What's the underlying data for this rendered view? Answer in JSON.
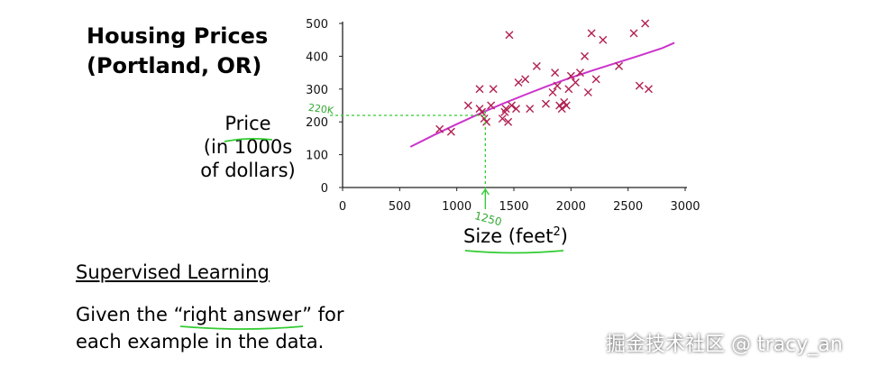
{
  "slide": {
    "title_line1": "Housing Prices",
    "title_line2": "(Portland, OR)",
    "ylabel_line1": "Price",
    "ylabel_line2": "(in 1000s",
    "ylabel_line3": "of dollars)",
    "xlabel": "Size (feet",
    "xlabel_sup": "2",
    "xlabel_end": ")",
    "section_title": "Supervised Learning",
    "desc_pre": "Given the “",
    "desc_highlight": "right answer",
    "desc_post": "” for",
    "desc_line2": "each example in the data.",
    "annotation_x": "1250",
    "annotation_y": "220K",
    "watermark": "掘金技术社区 @ tracy_an"
  },
  "colors": {
    "marker": "#b02050",
    "fit_line": "#cc33cc",
    "ink": "#33cc33"
  },
  "chart_data": {
    "type": "scatter",
    "title": "Housing Prices (Portland, OR)",
    "xlabel": "Size (feet2)",
    "ylabel": "Price (in 1000s of dollars)",
    "xlim": [
      0,
      3000
    ],
    "ylim": [
      0,
      500
    ],
    "xticks": [
      0,
      500,
      1000,
      1500,
      2000,
      2500,
      3000
    ],
    "yticks": [
      0,
      100,
      200,
      300,
      400,
      500
    ],
    "grid": false,
    "points": [
      [
        850,
        178
      ],
      [
        950,
        170
      ],
      [
        1100,
        250
      ],
      [
        1200,
        240
      ],
      [
        1200,
        300
      ],
      [
        1220,
        230
      ],
      [
        1240,
        210
      ],
      [
        1260,
        200
      ],
      [
        1300,
        250
      ],
      [
        1320,
        300
      ],
      [
        1400,
        210
      ],
      [
        1420,
        230
      ],
      [
        1430,
        240
      ],
      [
        1450,
        200
      ],
      [
        1460,
        465
      ],
      [
        1480,
        250
      ],
      [
        1520,
        240
      ],
      [
        1540,
        320
      ],
      [
        1600,
        330
      ],
      [
        1640,
        240
      ],
      [
        1700,
        370
      ],
      [
        1780,
        255
      ],
      [
        1840,
        290
      ],
      [
        1860,
        350
      ],
      [
        1880,
        310
      ],
      [
        1900,
        250
      ],
      [
        1920,
        240
      ],
      [
        1940,
        260
      ],
      [
        1960,
        250
      ],
      [
        1980,
        300
      ],
      [
        2000,
        340
      ],
      [
        2040,
        320
      ],
      [
        2080,
        350
      ],
      [
        2120,
        400
      ],
      [
        2150,
        290
      ],
      [
        2180,
        470
      ],
      [
        2220,
        330
      ],
      [
        2280,
        450
      ],
      [
        2420,
        370
      ],
      [
        2550,
        470
      ],
      [
        2600,
        310
      ],
      [
        2650,
        500
      ],
      [
        2680,
        300
      ]
    ],
    "fit_curve": [
      [
        600,
        125
      ],
      [
        800,
        160
      ],
      [
        1000,
        193
      ],
      [
        1200,
        225
      ],
      [
        1400,
        255
      ],
      [
        1600,
        283
      ],
      [
        1800,
        310
      ],
      [
        2000,
        335
      ],
      [
        2200,
        358
      ],
      [
        2400,
        380
      ],
      [
        2600,
        402
      ],
      [
        2800,
        425
      ],
      [
        2900,
        440
      ]
    ],
    "query": {
      "x": 1250,
      "y": 220
    }
  }
}
